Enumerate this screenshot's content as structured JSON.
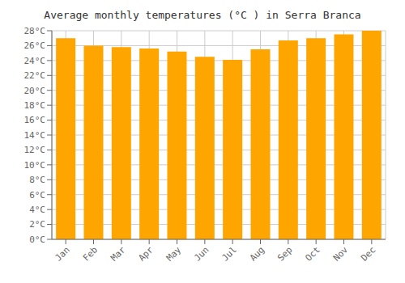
{
  "chart_data": {
    "type": "bar",
    "title": "Average monthly temperatures (°C ) in Serra Branca",
    "categories": [
      "Jan",
      "Feb",
      "Mar",
      "Apr",
      "May",
      "Jun",
      "Jul",
      "Aug",
      "Sep",
      "Oct",
      "Nov",
      "Dec"
    ],
    "values": [
      27.0,
      26.0,
      25.8,
      25.6,
      25.2,
      24.5,
      24.1,
      25.5,
      26.7,
      27.0,
      27.5,
      28.0
    ],
    "color": "#FFA500",
    "ylim": [
      0,
      28
    ],
    "yticks": [
      {
        "value": 0,
        "label": "0°C"
      },
      {
        "value": 2,
        "label": "2°C"
      },
      {
        "value": 4,
        "label": "4°C"
      },
      {
        "value": 6,
        "label": "6°C"
      },
      {
        "value": 8,
        "label": "8°C"
      },
      {
        "value": 10,
        "label": "10°C"
      },
      {
        "value": 12,
        "label": "12°C"
      },
      {
        "value": 14,
        "label": "14°C"
      },
      {
        "value": 16,
        "label": "16°C"
      },
      {
        "value": 18,
        "label": "18°C"
      },
      {
        "value": 20,
        "label": "20°C"
      },
      {
        "value": 22,
        "label": "22°C"
      },
      {
        "value": 24,
        "label": "24°C"
      },
      {
        "value": 26,
        "label": "26°C"
      },
      {
        "value": 28,
        "label": "28°C"
      }
    ],
    "grid": true
  }
}
